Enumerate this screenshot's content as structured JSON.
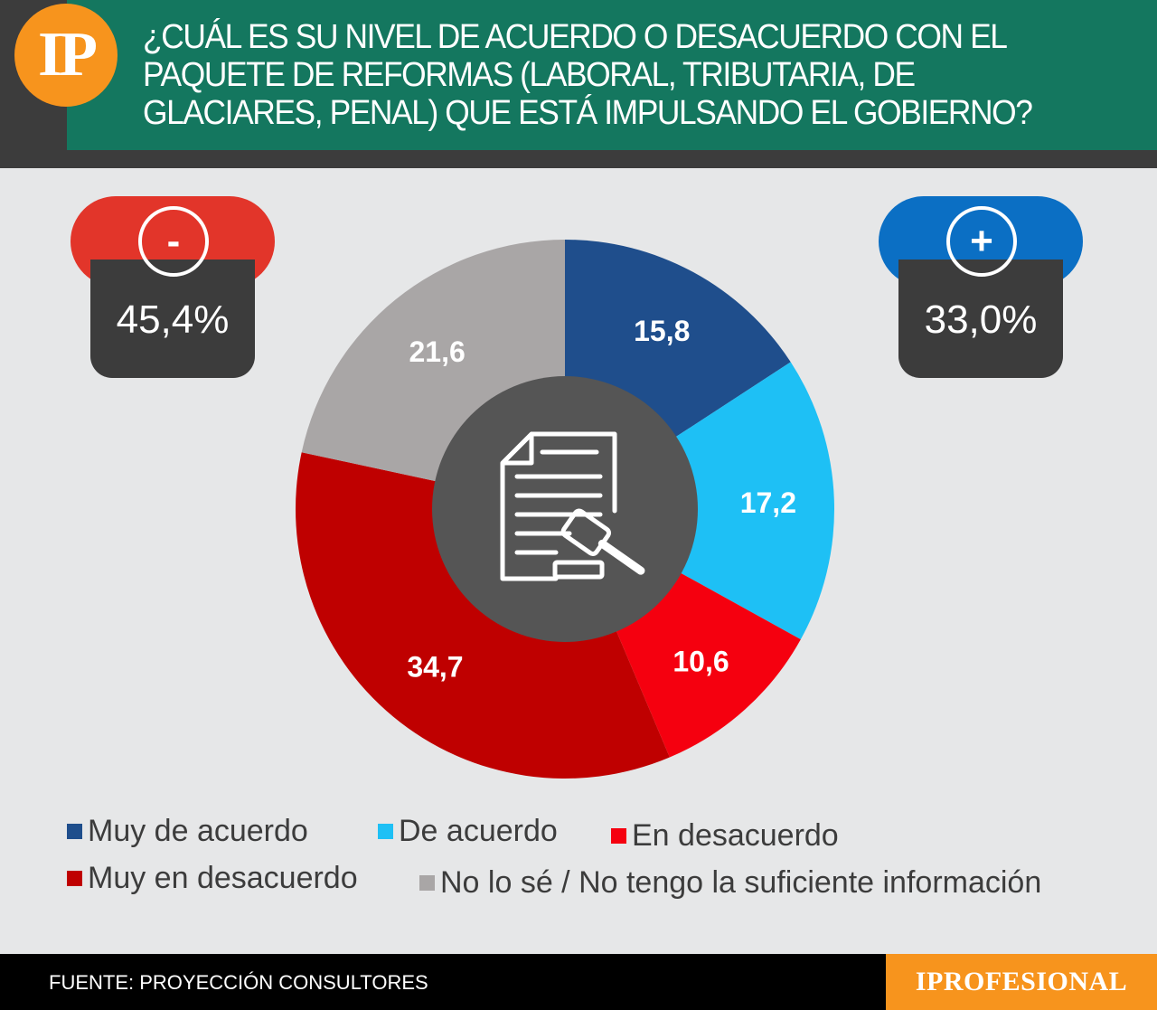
{
  "logo": {
    "text": "IP"
  },
  "title": "¿CUÁL ES SU NIVEL DE ACUERDO O DESACUERDO CON EL PAQUETE DE REFORMAS (LABORAL, TRIBUTARIA, DE GLACIARES, PENAL) QUE ESTÁ IMPULSANDO EL GOBIERNO?",
  "badges": {
    "negative": {
      "symbol": "-",
      "value": "45,4%",
      "color": "#e2352a"
    },
    "positive": {
      "symbol": "+",
      "value": "33,0%",
      "color": "#0b6fc4"
    }
  },
  "chart_data": {
    "type": "pie",
    "donut": true,
    "center_icon": "document-gavel-icon",
    "categories": [
      "Muy de acuerdo",
      "De acuerdo",
      "En desacuerdo",
      "Muy en desacuerdo",
      "No lo sé / No tengo la suficiente información"
    ],
    "values": [
      15.8,
      17.2,
      10.6,
      34.7,
      21.6
    ],
    "labels": [
      "15,8",
      "17,2",
      "10,6",
      "34,7",
      "21,6"
    ],
    "colors": [
      "#1f4e8c",
      "#1ec0f5",
      "#f5000f",
      "#bf0000",
      "#a9a6a6"
    ],
    "legend_position": "bottom"
  },
  "footer": {
    "source": "FUENTE: PROYECCIÓN CONSULTORES",
    "brand": "IPROFESIONAL"
  }
}
